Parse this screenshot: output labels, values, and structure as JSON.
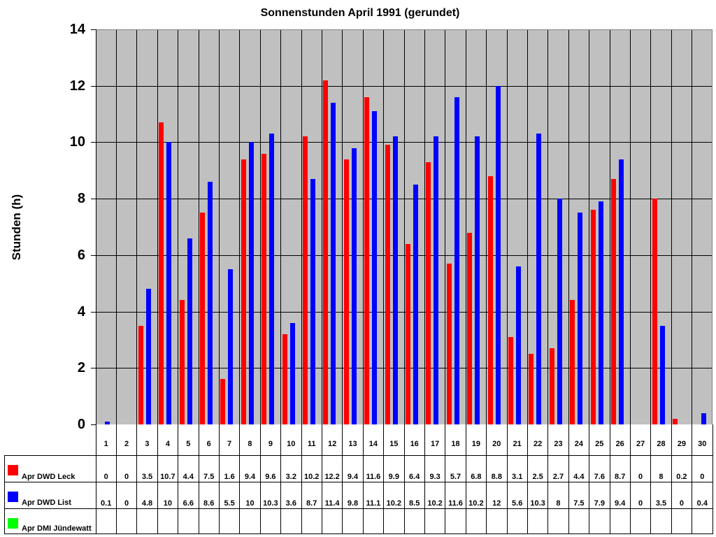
{
  "chart_data": {
    "type": "bar",
    "title": "Sonnenstunden April 1991 (gerundet)",
    "xlabel": "",
    "ylabel": "Stunden (h)",
    "ylim": [
      0,
      14
    ],
    "yticks": [
      "0",
      "2",
      "4",
      "6",
      "8",
      "10",
      "12",
      "14"
    ],
    "grid": true,
    "legend_position": "data-table-bottom",
    "categories": [
      "1",
      "2",
      "3",
      "4",
      "5",
      "6",
      "7",
      "8",
      "9",
      "10",
      "11",
      "12",
      "13",
      "14",
      "15",
      "16",
      "17",
      "18",
      "19",
      "20",
      "21",
      "22",
      "23",
      "24",
      "25",
      "26",
      "27",
      "28",
      "29",
      "30"
    ],
    "series": [
      {
        "name": "Apr DWD Leck",
        "color": "#ff0000",
        "values": [
          0,
          0,
          3.5,
          10.7,
          4.4,
          7.5,
          1.6,
          9.4,
          9.6,
          3.2,
          10.2,
          12.2,
          9.4,
          11.6,
          9.9,
          6.4,
          9.3,
          5.7,
          6.8,
          8.8,
          3.1,
          2.5,
          2.7,
          4.4,
          7.6,
          8.7,
          0,
          8,
          0.2,
          0
        ]
      },
      {
        "name": "Apr DWD List",
        "color": "#0000ff",
        "values": [
          0.1,
          0,
          4.8,
          10,
          6.6,
          8.6,
          5.5,
          10,
          10.3,
          3.6,
          8.7,
          11.4,
          9.8,
          11.1,
          10.2,
          8.5,
          10.2,
          11.6,
          10.2,
          12,
          5.6,
          10.3,
          8,
          7.5,
          7.9,
          9.4,
          0,
          3.5,
          0,
          0.4
        ]
      },
      {
        "name": "Apr DMI Jündewatt",
        "color": "#00ff00",
        "values": [
          null,
          null,
          null,
          null,
          null,
          null,
          null,
          null,
          null,
          null,
          null,
          null,
          null,
          null,
          null,
          null,
          null,
          null,
          null,
          null,
          null,
          null,
          null,
          null,
          null,
          null,
          null,
          null,
          null,
          null
        ]
      }
    ]
  },
  "colors": {
    "plot_background": "#c0c0c0",
    "leck": "#ff0000",
    "list": "#0000ff",
    "juendewatt": "#00ff00"
  }
}
